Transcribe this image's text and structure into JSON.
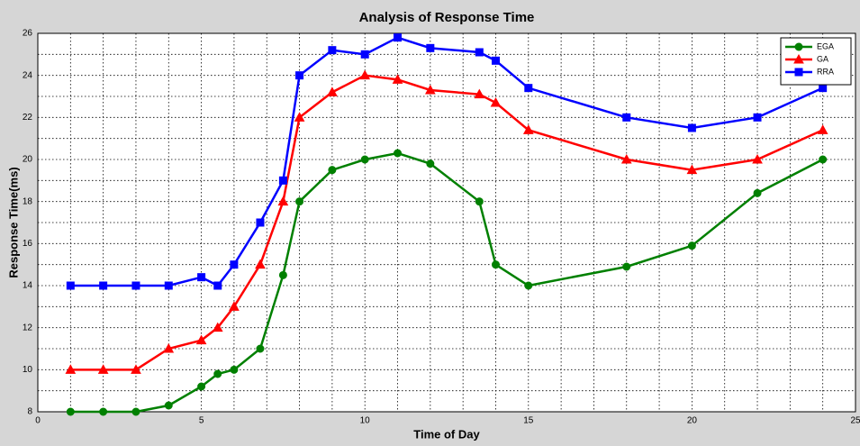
{
  "chart_data": {
    "type": "line",
    "title": "Analysis of Response Time",
    "xlabel": "Time of Day",
    "ylabel": "Response Time(ms)",
    "x": [
      1,
      2,
      3,
      4,
      5,
      5.5,
      6,
      6.8,
      7.5,
      8,
      9,
      10,
      11,
      12,
      13.5,
      14,
      15,
      18,
      20,
      22,
      24
    ],
    "series": [
      {
        "name": "EGA",
        "color": "#008000",
        "marker": "circle",
        "values": [
          8,
          8,
          8,
          8.3,
          9.2,
          9.8,
          10,
          11,
          14.5,
          18,
          19.5,
          20,
          20.3,
          19.8,
          18,
          15,
          14,
          14.9,
          15.9,
          18.4,
          20
        ]
      },
      {
        "name": "GA",
        "color": "#ff0000",
        "marker": "triangle",
        "values": [
          10,
          10,
          10,
          11,
          11.4,
          12,
          13,
          15,
          18,
          22,
          23.2,
          24,
          23.8,
          23.3,
          23.1,
          22.7,
          21.4,
          20,
          19.5,
          20,
          21.4
        ]
      },
      {
        "name": "RRA",
        "color": "#0000ff",
        "marker": "square",
        "values": [
          14,
          14,
          14,
          14,
          14.4,
          14,
          15,
          17,
          19,
          24,
          25.2,
          25,
          25.8,
          25.3,
          25.1,
          24.7,
          23.4,
          22,
          21.5,
          22,
          23.4
        ]
      }
    ],
    "xlim": [
      0,
      25
    ],
    "xticks": [
      0,
      5,
      10,
      15,
      20,
      25
    ],
    "ylim": [
      8,
      26
    ],
    "yticks": [
      8,
      10,
      12,
      14,
      16,
      18,
      20,
      22,
      24,
      26
    ],
    "xminorticks": [
      1,
      2,
      3,
      4,
      6,
      7,
      8,
      9,
      11,
      12,
      13,
      14,
      16,
      17,
      18,
      19,
      21,
      22,
      23,
      24
    ],
    "yminorticks": [
      9,
      11,
      13,
      15,
      17,
      19,
      21,
      23,
      25
    ],
    "grid": true,
    "legend": "upper right"
  }
}
